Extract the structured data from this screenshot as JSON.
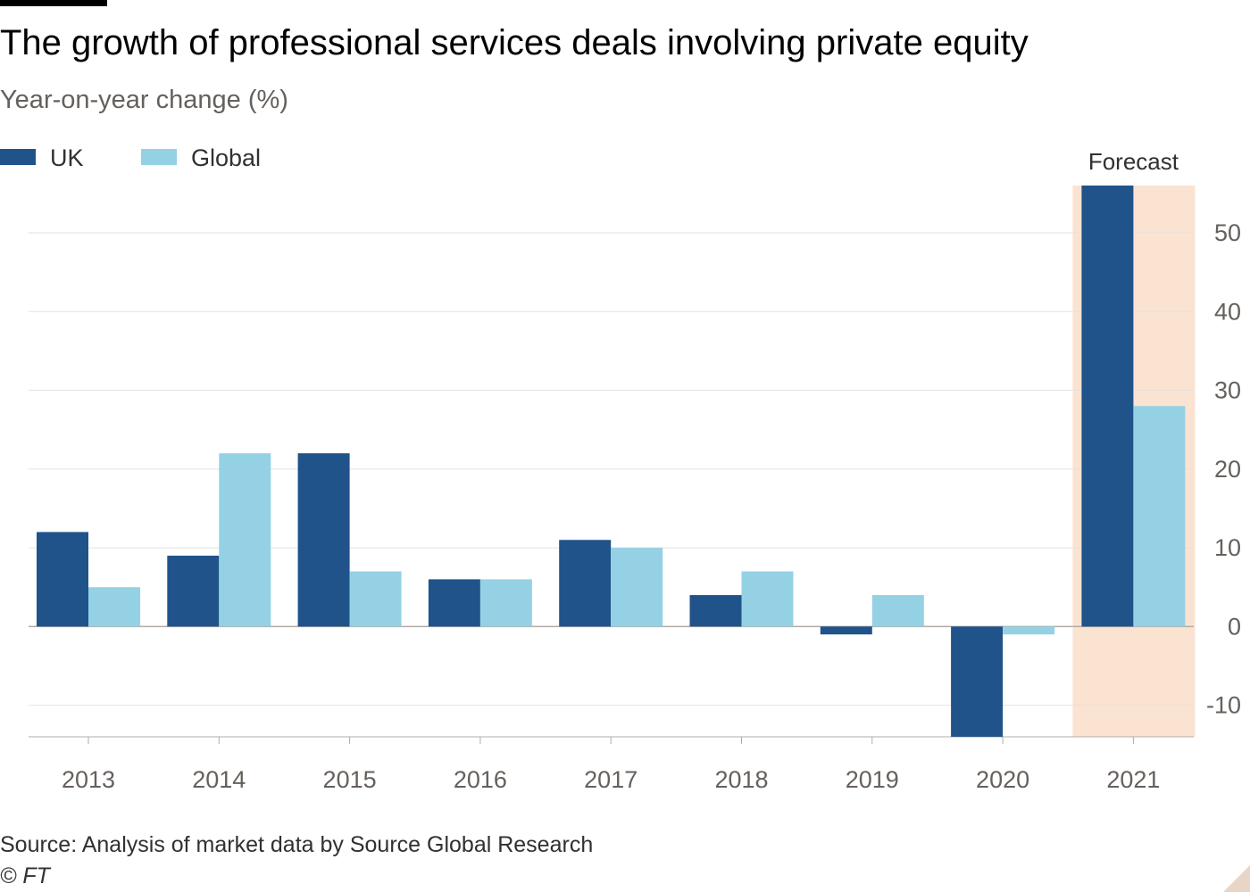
{
  "chart_data": {
    "type": "bar",
    "title": "The growth of professional services deals involving private equity",
    "subtitle": "Year-on-year change (%)",
    "categories": [
      "2013",
      "2014",
      "2015",
      "2016",
      "2017",
      "2018",
      "2019",
      "2020",
      "2021"
    ],
    "series": [
      {
        "name": "UK",
        "color": "#1f538a",
        "values": [
          12,
          9,
          22,
          6,
          11,
          4,
          -1,
          -14,
          56
        ]
      },
      {
        "name": "Global",
        "color": "#94d1e5",
        "values": [
          5,
          22,
          7,
          6,
          10,
          7,
          4,
          -1,
          28
        ]
      }
    ],
    "ylim": [
      -14,
      56
    ],
    "yticks": [
      -10,
      0,
      10,
      20,
      30,
      40,
      50
    ],
    "ytick_labels": [
      "-10",
      "0",
      "10",
      "20",
      "30",
      "40",
      "50"
    ],
    "y_axis_side": "right",
    "grid": true,
    "legend_position": "top-left",
    "forecast": {
      "label": "Forecast",
      "category": "2021",
      "color": "#fbe3d2"
    },
    "xlabel": "",
    "ylabel": "",
    "source": "Source: Analysis of market data by Source Global Research",
    "credit": "© FT"
  }
}
